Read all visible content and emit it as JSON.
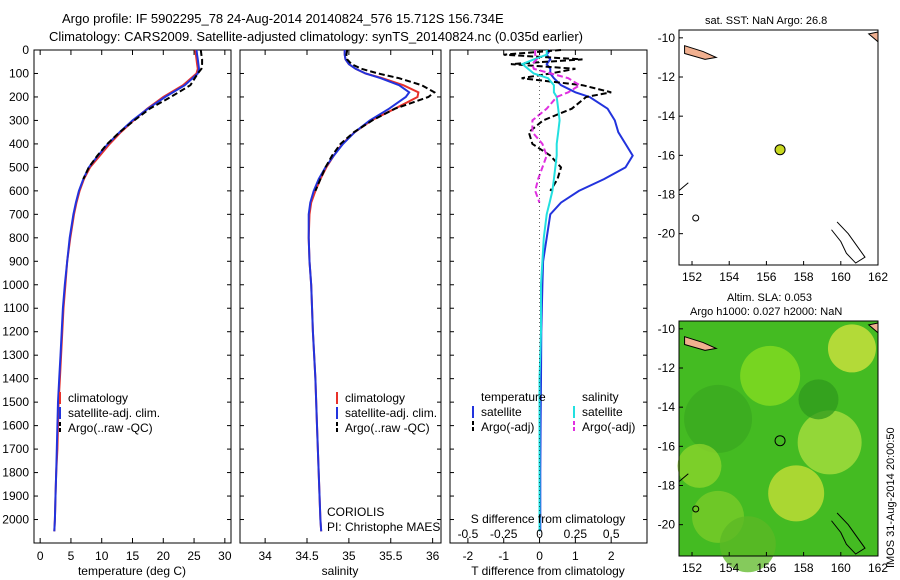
{
  "header": {
    "line1": "Argo profile: IF 5902295_78 24-Aug-2014 20140824_576 15.712S 156.734E",
    "line2": "Climatology: CARS2009. Satellite-adjusted climatology: synTS_20140824.nc (0.035d earlier)"
  },
  "colors": {
    "climatology": "#e8312a",
    "satellite": "#2233dd",
    "argo": "#000000",
    "sal_satellite": "#22e0e0",
    "sal_argo": "#e030e0",
    "land": "#f0b090",
    "sla_field": "#44bb22",
    "float_marker": "#c8d820"
  },
  "chart_data": [
    {
      "type": "line",
      "xlabel": "temperature (deg C)",
      "ylabel": "",
      "xlim": [
        -1,
        31
      ],
      "ylim": [
        2100,
        0
      ],
      "xticks": [
        "0",
        "5",
        "10",
        "15",
        "20",
        "25",
        "30"
      ],
      "yticks": [
        "0",
        "100",
        "200",
        "300",
        "400",
        "500",
        "600",
        "700",
        "800",
        "900",
        "1000",
        "1100",
        "1200",
        "1300",
        "1400",
        "1500",
        "1600",
        "1700",
        "1800",
        "1900",
        "2000"
      ],
      "legend": [
        "climatology",
        "satellite-adj. clim.",
        "Argo(..raw -QC)"
      ],
      "legend_position": "lower-center",
      "depth": [
        0,
        20,
        40,
        60,
        80,
        100,
        150,
        200,
        250,
        300,
        350,
        400,
        450,
        500,
        550,
        600,
        650,
        700,
        800,
        900,
        1000,
        1100,
        1200,
        1300,
        1400,
        1500,
        1600,
        1700,
        1800,
        1900,
        2000,
        2050
      ],
      "series": [
        {
          "name": "climatology",
          "values": [
            25.2,
            25.3,
            25.4,
            25.5,
            25.6,
            25.4,
            23.2,
            20.0,
            17.4,
            15.2,
            13.1,
            11.3,
            9.7,
            8.1,
            7.1,
            6.4,
            5.9,
            5.5,
            4.9,
            4.4,
            4.1,
            3.8,
            3.6,
            3.4,
            3.2,
            3.0,
            2.9,
            2.8,
            2.6,
            2.5,
            2.4,
            2.3
          ]
        },
        {
          "name": "satellite-adj. clim.",
          "values": [
            25.4,
            25.5,
            25.6,
            25.7,
            25.8,
            25.6,
            23.5,
            20.3,
            17.5,
            15.0,
            12.9,
            11.0,
            9.4,
            7.9,
            7.0,
            6.3,
            5.8,
            5.4,
            4.8,
            4.4,
            4.0,
            3.7,
            3.5,
            3.3,
            3.1,
            2.9,
            2.8,
            2.7,
            2.6,
            2.5,
            2.4,
            2.3
          ]
        },
        {
          "name": "Argo(..raw -QC)",
          "values": [
            26.1,
            26.2,
            26.3,
            26.3,
            26.2,
            25.6,
            24.4,
            21.2,
            17.8,
            15.3,
            12.9,
            10.9,
            9.3,
            7.9,
            7.0
          ]
        }
      ]
    },
    {
      "type": "line",
      "xlabel": "salinity",
      "xlim": [
        33.7,
        36.1
      ],
      "ylim": [
        2100,
        0
      ],
      "xticks": [
        "34",
        "34.5",
        "35",
        "35.5",
        "36"
      ],
      "legend": [
        "climatology",
        "satellite-adj. clim.",
        "Argo(..raw -QC)"
      ],
      "legend_position": "lower-center",
      "annotation": [
        "CORIOLIS",
        "PI: Christophe MAES"
      ],
      "depth": [
        0,
        20,
        40,
        60,
        80,
        100,
        120,
        150,
        180,
        200,
        250,
        300,
        350,
        400,
        450,
        500,
        550,
        600,
        650,
        700,
        800,
        900,
        1000,
        1200,
        1400,
        1600,
        1800,
        2000,
        2050
      ],
      "series": [
        {
          "name": "climatology",
          "values": [
            34.95,
            34.95,
            34.96,
            35.0,
            35.08,
            35.2,
            35.4,
            35.65,
            35.83,
            35.82,
            35.55,
            35.27,
            35.07,
            34.92,
            34.82,
            34.73,
            34.66,
            34.6,
            34.55,
            34.53,
            34.52,
            34.53,
            34.55,
            34.57,
            34.6,
            34.62,
            34.64,
            34.66,
            34.67
          ]
        },
        {
          "name": "satellite-adj. clim.",
          "values": [
            34.95,
            34.95,
            34.96,
            35.0,
            35.08,
            35.2,
            35.38,
            35.6,
            35.72,
            35.68,
            35.48,
            35.25,
            35.07,
            34.93,
            34.82,
            34.72,
            34.64,
            34.58,
            34.54,
            34.52,
            34.52,
            34.53,
            34.55,
            34.57,
            34.6,
            34.62,
            34.64,
            34.66,
            34.67
          ]
        },
        {
          "name": "Argo(..raw -QC)",
          "values": [
            34.98,
            34.97,
            34.98,
            35.03,
            35.15,
            35.35,
            35.6,
            35.87,
            36.02,
            35.95,
            35.55,
            35.28,
            35.06,
            34.9,
            34.8,
            34.72,
            34.66,
            34.6
          ]
        }
      ]
    },
    {
      "type": "line",
      "xlabel": "T difference from climatology",
      "x2label": "S difference from climatology",
      "xlim": [
        -2.5,
        3.0
      ],
      "x2lim": [
        -0.625,
        0.75
      ],
      "ylim": [
        2100,
        0
      ],
      "xticks": [
        "-2",
        "-1",
        "0",
        "1",
        "2"
      ],
      "x2ticks": [
        "-0.5",
        "-0.25",
        "0",
        "0.25",
        "0.5"
      ],
      "legend_left_title": "temperature",
      "legend_right_title": "salinity",
      "legend": [
        "satellite",
        "Argo(-adj)",
        "satellite",
        "Argo(-adj)"
      ],
      "legend_position": "lower-center",
      "depth": [
        0,
        20,
        40,
        60,
        80,
        100,
        120,
        150,
        180,
        200,
        250,
        300,
        350,
        400,
        450,
        500,
        550,
        600,
        650,
        700,
        800,
        900,
        1000,
        1200,
        1400,
        1600,
        1800,
        2000,
        2050
      ],
      "series": [
        {
          "name": "satellite",
          "quantity": "T",
          "values": [
            0.3,
            0.2,
            0.3,
            0.2,
            0.3,
            0.3,
            0.4,
            0.6,
            1.0,
            1.4,
            1.9,
            2.1,
            2.2,
            2.4,
            2.6,
            2.4,
            1.8,
            1.1,
            0.6,
            0.3,
            0.2,
            0.1,
            0.08,
            0.05,
            0.04,
            0.03,
            0.02,
            0.02,
            0.02
          ]
        },
        {
          "name": "Argo(-adj)",
          "quantity": "T",
          "values": [
            0.6,
            -1.0,
            1.2,
            -0.8,
            1.0,
            0.3,
            -0.5,
            1.2,
            2.0,
            1.3,
            0.9,
            0.1,
            -0.3,
            -0.2,
            0.3,
            0.6,
            0.5,
            0.3
          ]
        },
        {
          "name": "satellite",
          "quantity": "S",
          "values": [
            0.05,
            0.05,
            -0.04,
            -0.12,
            -0.08,
            -0.04,
            0.06,
            0.1,
            0.1,
            0.12,
            0.13,
            0.14,
            0.13,
            0.12,
            0.12,
            0.11,
            0.1,
            0.09,
            0.07,
            0.05,
            0.03,
            0.02,
            0.01,
            0.01,
            0.0,
            0.0,
            0.0,
            0.0,
            0.0
          ]
        },
        {
          "name": "Argo(-adj)",
          "quantity": "S",
          "values": [
            -0.03,
            -0.03,
            -0.02,
            -0.05,
            -0.04,
            0.08,
            0.2,
            0.28,
            0.2,
            0.12,
            0.05,
            -0.05,
            -0.05,
            0.02,
            0.05,
            0.02,
            -0.01,
            -0.03,
            0.0
          ]
        }
      ]
    },
    {
      "type": "scatter",
      "title": "sat. SST: NaN Argo: 26.8",
      "xlim": [
        151.3,
        162
      ],
      "ylim": [
        -21.6,
        -9.6
      ],
      "xticks": [
        "152",
        "154",
        "156",
        "158",
        "160",
        "162"
      ],
      "yticks": [
        "-10",
        "-12",
        "-14",
        "-16",
        "-18",
        "-20"
      ],
      "x": [
        156.734
      ],
      "y": [
        -15.712
      ]
    },
    {
      "type": "heatmap",
      "title_line1": "Altim. SLA: 0.053",
      "title_line2": "Argo h1000: 0.027 h2000: NaN",
      "xlim": [
        151.3,
        162
      ],
      "ylim": [
        -21.6,
        -9.6
      ],
      "xticks": [
        "152",
        "154",
        "156",
        "158",
        "160",
        "162"
      ],
      "yticks": [
        "-10",
        "-12",
        "-14",
        "-16",
        "-18",
        "-20"
      ],
      "x": [
        156.734
      ],
      "y": [
        -15.712
      ]
    }
  ],
  "sidebar_stamp": "IMOS 31-Aug-2014 20:00:50"
}
